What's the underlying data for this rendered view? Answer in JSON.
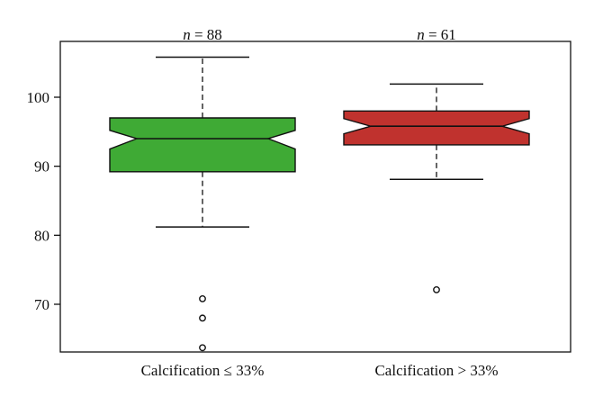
{
  "chart_data": {
    "type": "box",
    "categories": [
      "Calcification ≤ 33%",
      "Calcification > 33%"
    ],
    "n_labels": [
      "n = 88",
      "n = 61"
    ],
    "n_values": [
      88,
      61
    ],
    "yticks": [
      70,
      80,
      90,
      100
    ],
    "ylim": [
      63,
      107
    ],
    "xlabel": "",
    "ylabel": "",
    "boxes": [
      {
        "category": "Calcification ≤ 33%",
        "color": "#3faa35",
        "whisker_low": 81.2,
        "q1": 89.2,
        "median": 94.0,
        "q3": 97.0,
        "whisker_high": 105.8,
        "notch_low": 92.5,
        "notch_high": 95.2,
        "outliers": [
          70.8,
          68.0,
          63.7
        ]
      },
      {
        "category": "Calcification > 33%",
        "color": "#c0322e",
        "whisker_low": 88.1,
        "q1": 93.1,
        "median": 95.8,
        "q3": 98.0,
        "whisker_high": 101.9,
        "notch_low": 94.7,
        "notch_high": 96.9,
        "outliers": [
          72.1
        ]
      }
    ]
  }
}
